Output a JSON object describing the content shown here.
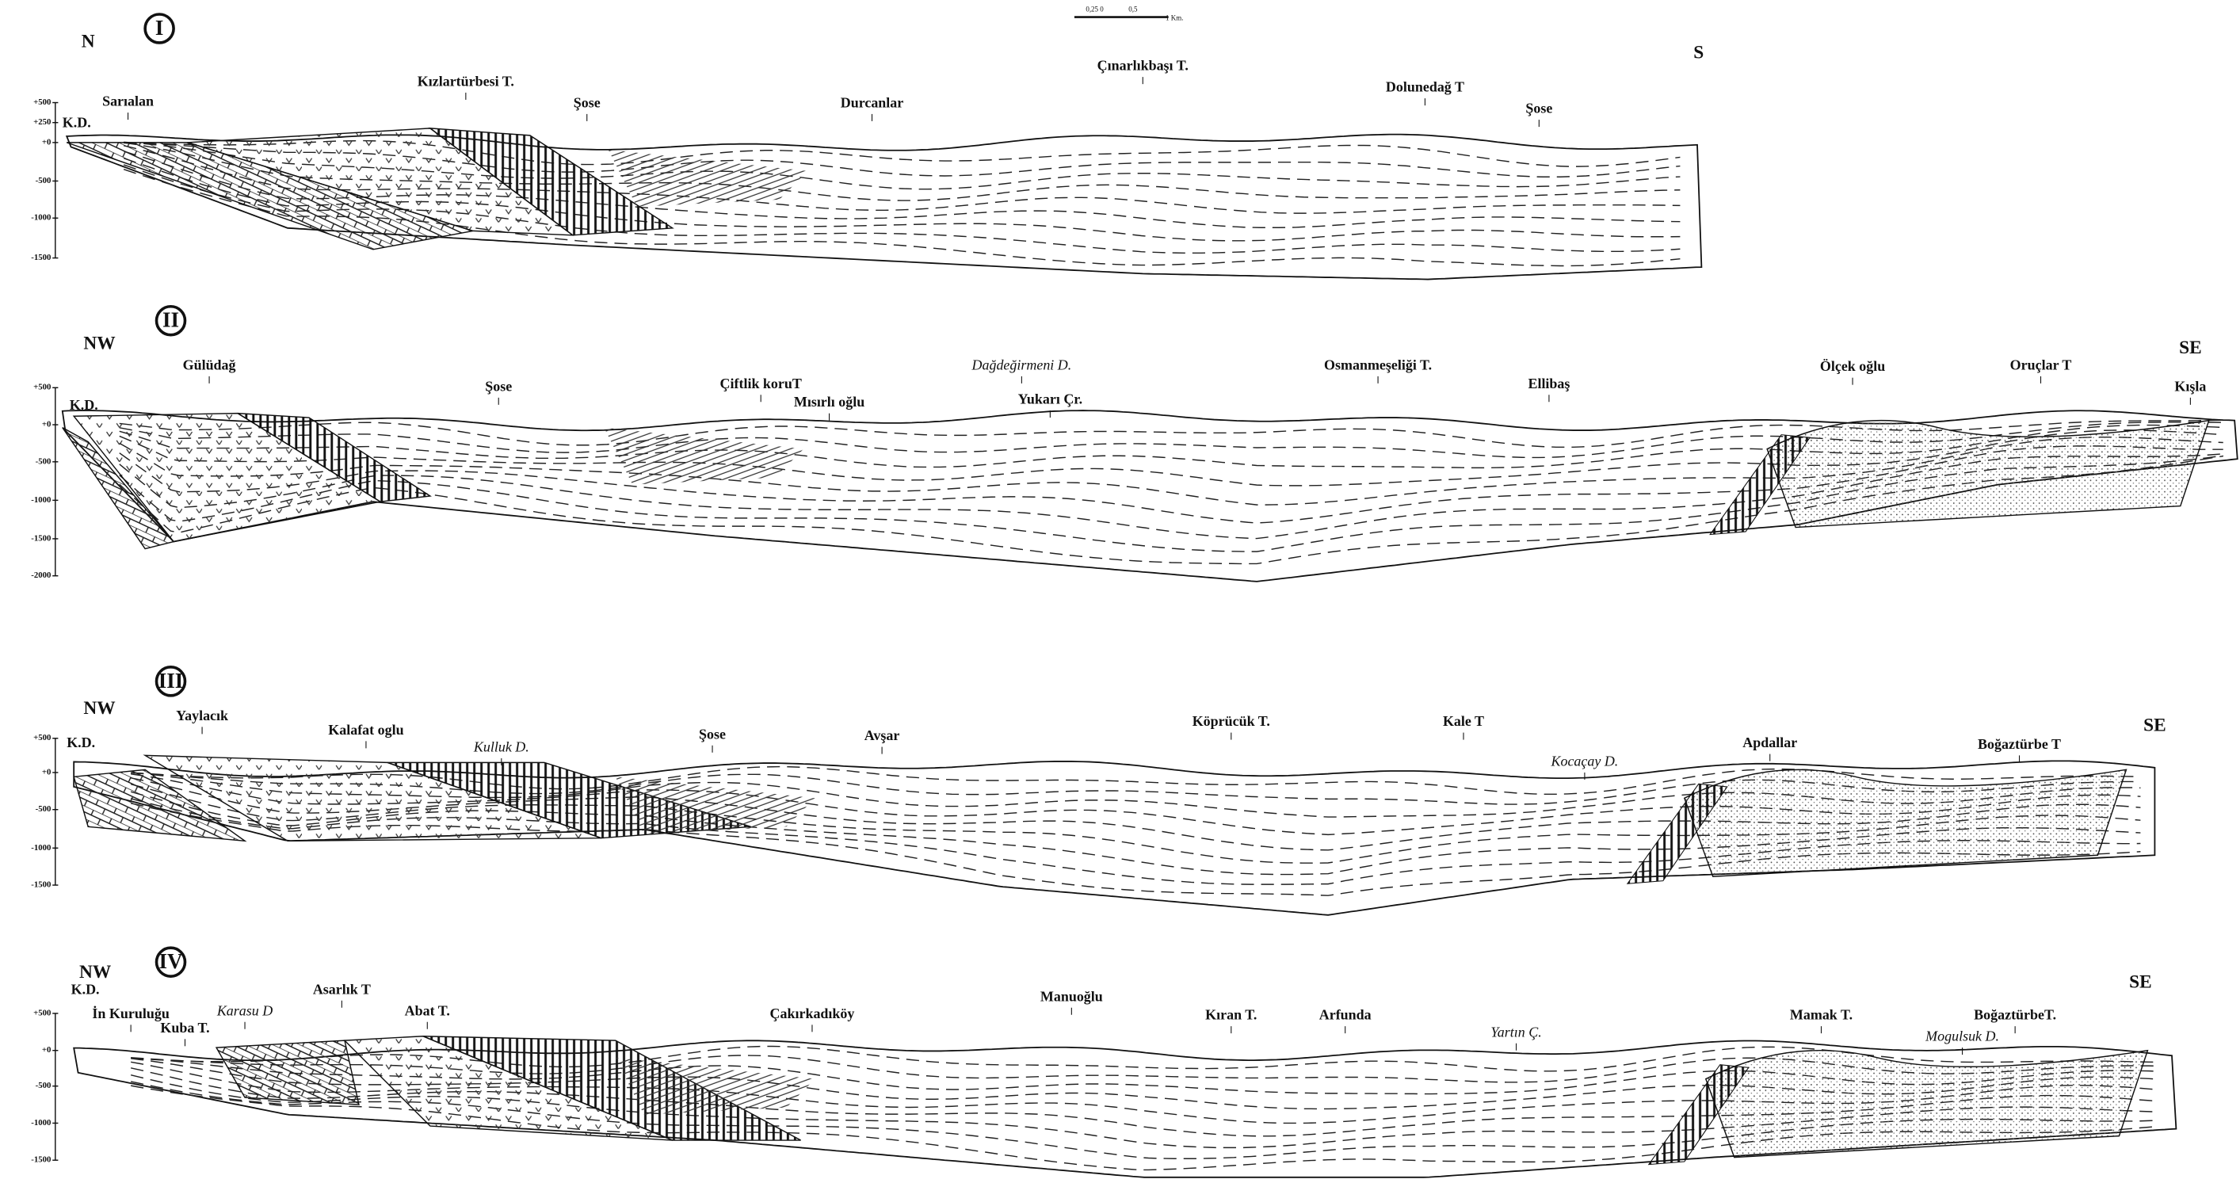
{
  "scale_bar": {
    "labels": [
      "0,25 0",
      "0,5",
      "1 Km."
    ]
  },
  "sections": [
    {
      "numeral": "I",
      "left_direction": "N",
      "right_direction": "S",
      "elevation_labels": [
        "+500",
        "+250",
        "+0",
        "-500",
        "-1000",
        "-1500"
      ],
      "places": [
        "K.D.",
        "Sarıalan",
        "Kızlartürbesi T.",
        "Şose",
        "Durcanlar",
        "Çınarlıkbaşı T.",
        "Dolunedağ T",
        "Şose"
      ]
    },
    {
      "numeral": "II",
      "left_direction": "NW",
      "right_direction": "SE",
      "elevation_labels": [
        "+500",
        "+0",
        "-500",
        "-1000",
        "-1500",
        "-2000"
      ],
      "places": [
        "K.D.",
        "Gülüdağ",
        "Şose",
        "Çiftlik koruT",
        "Mısırlı oğlu",
        "Dağdeğirmeni D.",
        "Yukarı Çr.",
        "Osmanmeşeliği T.",
        "Ellibaş",
        "Ölçek oğlu",
        "Oruçlar T",
        "Kışla"
      ]
    },
    {
      "numeral": "III",
      "left_direction": "NW",
      "right_direction": "SE",
      "elevation_labels": [
        "+500",
        "+0",
        "-500",
        "-1000",
        "-1500"
      ],
      "places": [
        "K.D.",
        "Yaylacık",
        "Kalafat oglu",
        "Kulluk D.",
        "Şose",
        "Avşar",
        "Köprücük T.",
        "Kale T",
        "Kocaçay D.",
        "Apdallar",
        "Boğaztürbe T"
      ]
    },
    {
      "numeral": "IV",
      "left_direction": "NW",
      "right_direction": "SE",
      "elevation_labels": [
        "+500",
        "+0",
        "-500",
        "-1000",
        "-1500"
      ],
      "places": [
        "K.D.",
        "İn Kuruluğu",
        "Kuba T.",
        "Karasu D",
        "Asarlık T",
        "Abat T.",
        "Çakırkadıköy",
        "Manuoğlu",
        "Kıran T.",
        "Arfunda",
        "Yartın Ç.",
        "Mamak T.",
        "Mogulsuk D.",
        "BoğaztürbeT."
      ]
    }
  ]
}
